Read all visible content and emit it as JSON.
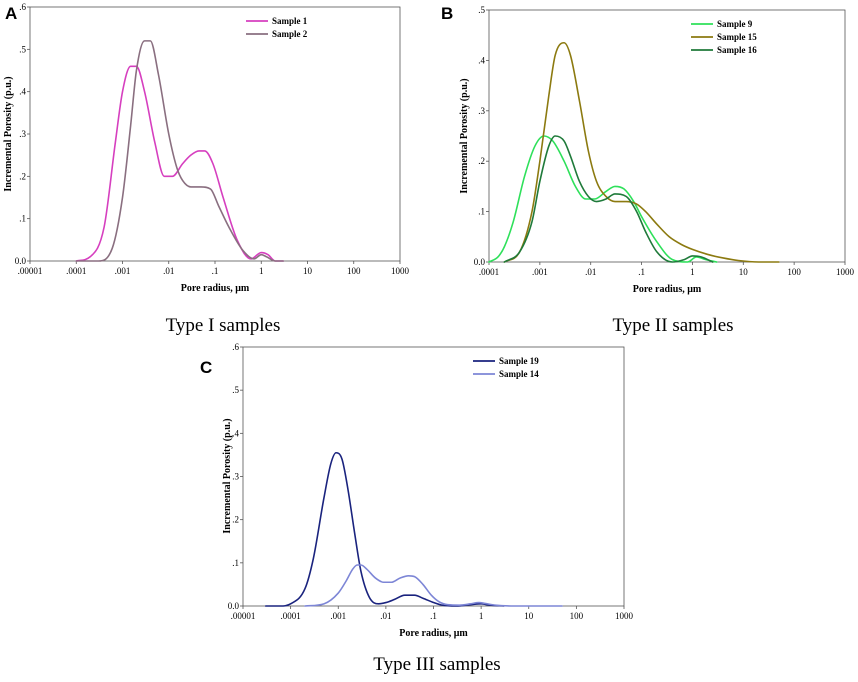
{
  "chart_data": [
    {
      "type": "line",
      "panel_label": "A",
      "caption": "Type I samples",
      "xlabel": "Pore radius, μm",
      "ylabel": "Incremental Porosity (p.u.)",
      "xscale": "log",
      "xlim": [
        1e-05,
        1000
      ],
      "ylim": [
        0,
        0.6
      ],
      "xticks": [
        ".00001",
        ".0001",
        ".001",
        ".01",
        ".1",
        "1",
        "10",
        "100",
        "1000"
      ],
      "yticks": [
        "0.0",
        ".1",
        ".2",
        ".3",
        ".4",
        ".5",
        ".6"
      ],
      "legend_position": "top-right",
      "series": [
        {
          "name": "Sample 1",
          "color": "#d63fbf",
          "x": [
            0.0001,
            0.0002,
            0.0004,
            0.0007,
            0.001,
            0.0015,
            0.002,
            0.003,
            0.005,
            0.008,
            0.012,
            0.02,
            0.03,
            0.045,
            0.06,
            0.09,
            0.15,
            0.3,
            0.6,
            1.0,
            1.4,
            2.0,
            3.0
          ],
          "y": [
            0.0,
            0.01,
            0.08,
            0.28,
            0.4,
            0.46,
            0.46,
            0.4,
            0.28,
            0.2,
            0.2,
            0.23,
            0.25,
            0.26,
            0.26,
            0.23,
            0.15,
            0.05,
            0.005,
            0.02,
            0.015,
            0.0,
            0.0
          ]
        },
        {
          "name": "Sample 2",
          "color": "#8a6f80",
          "x": [
            0.0001,
            0.0003,
            0.0006,
            0.001,
            0.0015,
            0.002,
            0.003,
            0.004,
            0.006,
            0.01,
            0.015,
            0.02,
            0.03,
            0.05,
            0.08,
            0.12,
            0.2,
            0.4,
            0.7,
            1.0,
            1.3,
            2.0,
            3.0
          ],
          "y": [
            0.0,
            0.0,
            0.03,
            0.15,
            0.32,
            0.45,
            0.52,
            0.52,
            0.44,
            0.3,
            0.22,
            0.19,
            0.175,
            0.175,
            0.17,
            0.13,
            0.08,
            0.025,
            0.005,
            0.015,
            0.01,
            0.0,
            0.0
          ]
        }
      ]
    },
    {
      "type": "line",
      "panel_label": "B",
      "caption": "Type II samples",
      "xlabel": "Pore radius, μm",
      "ylabel": "Incremental Porosity (p.u.)",
      "xscale": "log",
      "xlim": [
        0.0001,
        1000
      ],
      "ylim": [
        0,
        0.5
      ],
      "xticks": [
        ".0001",
        ".001",
        ".01",
        ".1",
        "1",
        "10",
        "100",
        "1000"
      ],
      "yticks": [
        "0.0",
        ".1",
        ".2",
        ".3",
        ".4",
        ".5"
      ],
      "legend_position": "top-right",
      "series": [
        {
          "name": "Sample 9",
          "color": "#2ee05a",
          "x": [
            0.0001,
            0.00015,
            0.0002,
            0.0003,
            0.0005,
            0.0008,
            0.0012,
            0.0018,
            0.003,
            0.005,
            0.008,
            0.012,
            0.02,
            0.03,
            0.045,
            0.07,
            0.1,
            0.2,
            0.4,
            0.8,
            1.2,
            1.8,
            3.0
          ],
          "y": [
            0.0,
            0.01,
            0.03,
            0.08,
            0.17,
            0.23,
            0.25,
            0.24,
            0.2,
            0.15,
            0.125,
            0.125,
            0.14,
            0.15,
            0.145,
            0.12,
            0.09,
            0.04,
            0.005,
            0.0,
            0.01,
            0.005,
            0.0
          ]
        },
        {
          "name": "Sample 15",
          "color": "#8c7a10",
          "x": [
            0.0002,
            0.0004,
            0.0007,
            0.001,
            0.0015,
            0.002,
            0.003,
            0.004,
            0.006,
            0.009,
            0.013,
            0.02,
            0.03,
            0.05,
            0.08,
            0.12,
            0.2,
            0.35,
            0.6,
            1.0,
            2.0,
            4.0,
            8.0,
            20.0,
            50.0
          ],
          "y": [
            0.0,
            0.02,
            0.1,
            0.2,
            0.33,
            0.41,
            0.435,
            0.41,
            0.32,
            0.22,
            0.16,
            0.13,
            0.12,
            0.12,
            0.115,
            0.1,
            0.075,
            0.05,
            0.035,
            0.025,
            0.015,
            0.008,
            0.003,
            0.0,
            0.0
          ]
        },
        {
          "name": "Sample 16",
          "color": "#1f7a3a",
          "x": [
            0.0002,
            0.0004,
            0.0007,
            0.001,
            0.0015,
            0.002,
            0.003,
            0.004,
            0.006,
            0.009,
            0.013,
            0.02,
            0.03,
            0.05,
            0.08,
            0.12,
            0.2,
            0.4,
            0.7,
            1.0,
            1.5,
            2.5
          ],
          "y": [
            0.0,
            0.02,
            0.08,
            0.16,
            0.23,
            0.25,
            0.24,
            0.21,
            0.16,
            0.13,
            0.12,
            0.125,
            0.135,
            0.13,
            0.1,
            0.06,
            0.02,
            0.0,
            0.005,
            0.012,
            0.01,
            0.0
          ]
        }
      ]
    },
    {
      "type": "line",
      "panel_label": "C",
      "caption": "Type III samples",
      "xlabel": "Pore radius, μm",
      "ylabel": "Incremental Porosity (p.u.)",
      "xscale": "log",
      "xlim": [
        1e-05,
        1000
      ],
      "ylim": [
        0,
        0.6
      ],
      "xticks": [
        ".00001",
        ".0001",
        ".001",
        ".01",
        ".1",
        "1",
        "10",
        "100",
        "1000"
      ],
      "yticks": [
        "0.0",
        ".1",
        ".2",
        ".3",
        ".4",
        ".5",
        ".6"
      ],
      "legend_position": "top-right",
      "series": [
        {
          "name": "Sample 19",
          "color": "#1a237e",
          "x": [
            3e-05,
            6e-05,
            0.0001,
            0.0002,
            0.0003,
            0.0005,
            0.0007,
            0.0009,
            0.0012,
            0.0016,
            0.0022,
            0.003,
            0.0045,
            0.007,
            0.01,
            0.015,
            0.025,
            0.04,
            0.06,
            0.1,
            0.15,
            0.3,
            0.6,
            1.0,
            1.5,
            3.0
          ],
          "y": [
            0.0,
            0.0,
            0.005,
            0.04,
            0.11,
            0.25,
            0.33,
            0.355,
            0.34,
            0.27,
            0.17,
            0.08,
            0.02,
            0.005,
            0.008,
            0.015,
            0.025,
            0.025,
            0.018,
            0.008,
            0.002,
            0.0,
            0.003,
            0.005,
            0.002,
            0.0
          ]
        },
        {
          "name": "Sample 14",
          "color": "#7d86d6",
          "x": [
            0.0002,
            0.0005,
            0.001,
            0.0015,
            0.002,
            0.0025,
            0.003,
            0.004,
            0.006,
            0.009,
            0.013,
            0.02,
            0.03,
            0.04,
            0.06,
            0.09,
            0.13,
            0.2,
            0.35,
            0.6,
            0.9,
            1.2,
            2.0,
            5.0,
            20.0,
            50.0
          ],
          "y": [
            0.0,
            0.005,
            0.03,
            0.06,
            0.085,
            0.095,
            0.095,
            0.085,
            0.065,
            0.055,
            0.055,
            0.065,
            0.07,
            0.068,
            0.05,
            0.025,
            0.01,
            0.003,
            0.002,
            0.005,
            0.008,
            0.006,
            0.002,
            0.0,
            0.0,
            0.0
          ]
        }
      ]
    }
  ]
}
